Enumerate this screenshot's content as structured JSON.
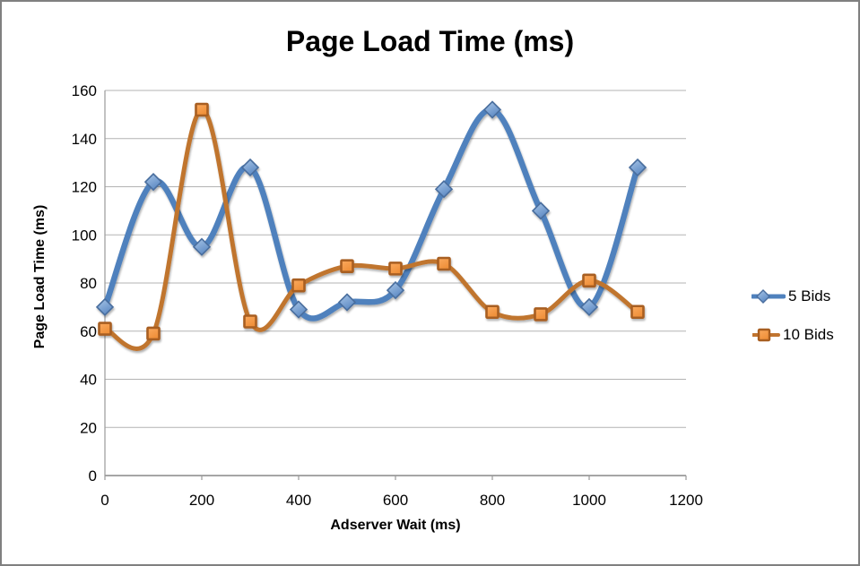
{
  "chart_data": {
    "type": "line",
    "title": "Page Load Time (ms)",
    "xlabel": "Adserver Wait (ms)",
    "ylabel": "Page Load Time (ms)",
    "x": [
      0,
      100,
      200,
      300,
      400,
      500,
      600,
      700,
      800,
      900,
      1000,
      1100
    ],
    "series": [
      {
        "name": "5 Bids",
        "values": [
          70,
          122,
          95,
          128,
          69,
          72,
          77,
          119,
          152,
          110,
          70,
          128
        ],
        "color": "#4f81bd",
        "marker": "diamond",
        "marker_fill_light": "#aac7e8",
        "marker_fill": "#5d8ac4",
        "marker_stroke": "#4a6e9e",
        "line_width": 6.5
      },
      {
        "name": "10 Bids",
        "values": [
          61,
          59,
          152,
          64,
          79,
          87,
          86,
          88,
          68,
          67,
          81,
          68
        ],
        "color": "#c0742f",
        "marker": "square",
        "marker_fill_light": "#fbaa5f",
        "marker_fill": "#ef8f38",
        "marker_stroke": "#a85e20",
        "line_width": 5
      }
    ],
    "x_ticks": [
      0,
      200,
      400,
      600,
      800,
      1000,
      1200
    ],
    "y_ticks": [
      0,
      20,
      40,
      60,
      80,
      100,
      120,
      140,
      160
    ],
    "xlim": [
      0,
      1200
    ],
    "ylim": [
      0,
      160
    ],
    "grid": true,
    "smooth": true,
    "legend_position": "right"
  },
  "style": {
    "grid_color": "#b3b3b3",
    "axis_color": "#9a9a9a",
    "frame_border_color": "#808080",
    "background": "#ffffff",
    "text_color": "#000000"
  }
}
